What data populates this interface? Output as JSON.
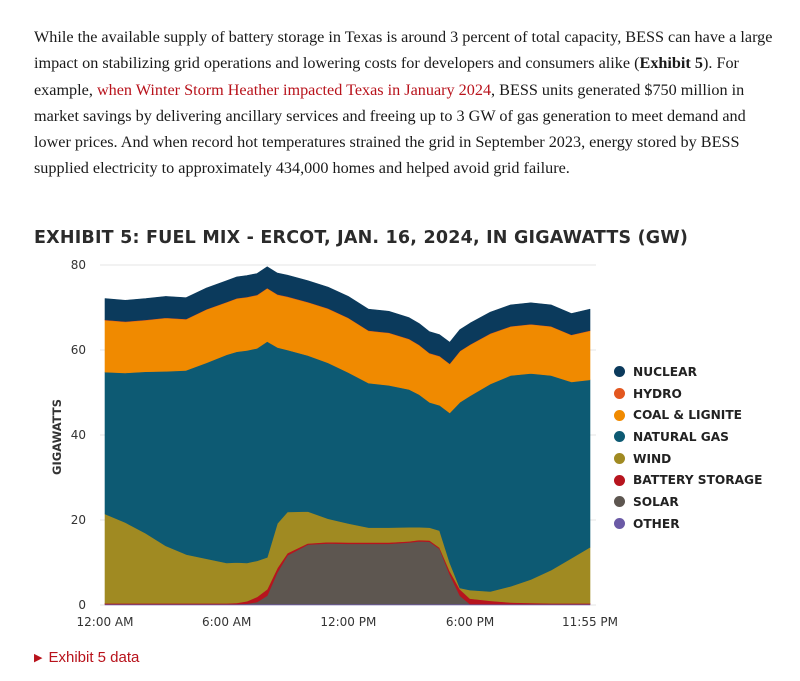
{
  "article": {
    "para_part1": "While the available supply of battery storage in Texas is around 3 percent of total capacity, BESS can have a large impact on stabilizing grid operations and lowering costs for developers and consumers alike (",
    "para_bold": "Exhibit 5",
    "para_part2": "). For example, ",
    "link_text": "when Winter Storm Heather impacted Texas in January 2024",
    "para_part3": ", BESS units generated $750 million in market savings by delivering ancillary services and freeing up to 3 GW of gas generation to meet demand and lower prices. And when record hot temperatures strained the grid in September 2023, energy stored by BESS supplied electricity to approximately 434,000 homes and helped avoid grid failure."
  },
  "exhibit": {
    "title": "EXHIBIT 5: FUEL MIX - ERCOT, JAN. 16, 2024, IN GIGAWATTS (GW)",
    "data_link": "Exhibit 5 data"
  },
  "chart_data": {
    "type": "area",
    "stacked": true,
    "title": "EXHIBIT 5: FUEL MIX - ERCOT, JAN. 16, 2024, IN GIGAWATTS (GW)",
    "xlabel": "",
    "ylabel": "GIGAWATTS",
    "ylim": [
      0,
      80
    ],
    "yticks": [
      0,
      20,
      40,
      60,
      80
    ],
    "xlim": [
      0,
      23.917
    ],
    "xticks": [
      {
        "x": 0,
        "label": "12:00 AM"
      },
      {
        "x": 6,
        "label": "6:00 AM"
      },
      {
        "x": 12,
        "label": "12:00 PM"
      },
      {
        "x": 18,
        "label": "6:00 PM"
      },
      {
        "x": 23.917,
        "label": "11:55 PM"
      }
    ],
    "grid": true,
    "legend_position": "right",
    "x": [
      0,
      1,
      2,
      3,
      4,
      5,
      6,
      6.5,
      7,
      7.5,
      8,
      8.5,
      9,
      10,
      11,
      12,
      13,
      14,
      15,
      15.5,
      16,
      16.5,
      17,
      17.5,
      18,
      19,
      20,
      21,
      22,
      23,
      23.917
    ],
    "series": [
      {
        "name": "OTHER",
        "color": "#6b5aa6",
        "values": [
          0.2,
          0.2,
          0.2,
          0.2,
          0.2,
          0.2,
          0.2,
          0.2,
          0.2,
          0.2,
          0.2,
          0.2,
          0.2,
          0.2,
          0.2,
          0.2,
          0.2,
          0.2,
          0.2,
          0.2,
          0.2,
          0.2,
          0.2,
          0.2,
          0.2,
          0.2,
          0.2,
          0.2,
          0.2,
          0.2,
          0.2
        ]
      },
      {
        "name": "SOLAR",
        "color": "#5d5650",
        "values": [
          0,
          0,
          0,
          0,
          0,
          0,
          0,
          0,
          0.1,
          0.5,
          2,
          7.5,
          11.5,
          14,
          14.3,
          14.2,
          14.2,
          14.2,
          14.5,
          14.8,
          14.7,
          13,
          7,
          2,
          0,
          0,
          0,
          0,
          0,
          0,
          0
        ]
      },
      {
        "name": "BATTERY STORAGE",
        "color": "#b7141e",
        "values": [
          0.2,
          0.2,
          0.2,
          0.2,
          0.2,
          0.2,
          0.2,
          0.3,
          0.6,
          1.2,
          1.5,
          1,
          0.5,
          0.3,
          0.3,
          0.3,
          0.3,
          0.3,
          0.3,
          0.3,
          0.3,
          0.3,
          0.8,
          1.5,
          1.3,
          0.8,
          0.4,
          0.3,
          0.2,
          0.2,
          0.2
        ]
      },
      {
        "name": "WIND",
        "color": "#a08a22",
        "values": [
          21,
          19,
          16.5,
          13.5,
          11.5,
          10.5,
          9.5,
          9.5,
          9,
          8.5,
          7.5,
          10.5,
          9.7,
          7.5,
          5.5,
          4.5,
          3.5,
          3.5,
          3.3,
          3,
          3,
          4,
          2,
          0.3,
          2,
          2.2,
          3.8,
          5.5,
          7.8,
          10.6,
          13.2
        ]
      },
      {
        "name": "NATURAL GAS",
        "color": "#0d5a73",
        "values": [
          33.4,
          35.2,
          38,
          41.1,
          43.3,
          46.1,
          49,
          49.6,
          50,
          50,
          50.8,
          41.4,
          38.1,
          36.7,
          36.7,
          35.5,
          34,
          33.5,
          32.4,
          31.2,
          29.5,
          29.5,
          35.2,
          43.7,
          45.7,
          48.8,
          49.6,
          48.5,
          45.8,
          41.5,
          39.4
        ]
      },
      {
        "name": "COAL & LIGNITE",
        "color": "#f08a00",
        "values": [
          12.2,
          12,
          12.1,
          12.5,
          12,
          12.5,
          12.3,
          12.5,
          12.5,
          12.5,
          12.5,
          12.4,
          12.5,
          12.5,
          12.7,
          12.8,
          12.3,
          12.3,
          11.8,
          11.6,
          11.5,
          11.5,
          11.5,
          12,
          12,
          11.8,
          11.5,
          11.5,
          11.5,
          11,
          11.5
        ]
      },
      {
        "name": "HYDRO",
        "color": "#e3571f",
        "values": [
          0.1,
          0.1,
          0.1,
          0.1,
          0.1,
          0.1,
          0.1,
          0.1,
          0.1,
          0.1,
          0.1,
          0.1,
          0.1,
          0.1,
          0.1,
          0.1,
          0.1,
          0.1,
          0.1,
          0.1,
          0.1,
          0.1,
          0.1,
          0.1,
          0.1,
          0.1,
          0.1,
          0.1,
          0.1,
          0.1,
          0.1
        ]
      },
      {
        "name": "NUCLEAR",
        "color": "#0b3a5c",
        "values": [
          5,
          5,
          5,
          5,
          5,
          5,
          5,
          5,
          5,
          5,
          5,
          5,
          5,
          5,
          5,
          5,
          5,
          5,
          5,
          5,
          5,
          5,
          5,
          5,
          5,
          5,
          5,
          5,
          5,
          5,
          5
        ]
      }
    ],
    "legend_order": [
      "NUCLEAR",
      "HYDRO",
      "COAL & LIGNITE",
      "NATURAL GAS",
      "WIND",
      "BATTERY STORAGE",
      "SOLAR",
      "OTHER"
    ]
  }
}
